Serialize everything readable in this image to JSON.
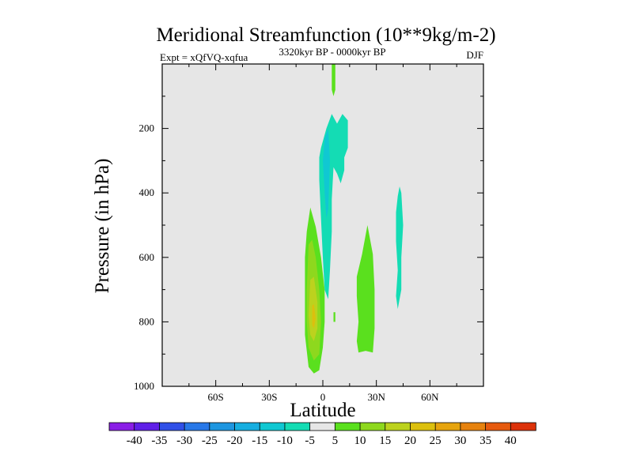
{
  "chart_data": {
    "type": "contour",
    "title": "Meridional Streamfunction (10**9kg/m-2)",
    "subtitle_left": "Expt = xQfVQ-xqfua",
    "subtitle_center": "3320kyr BP - 0000kyr BP",
    "subtitle_right": "DJF",
    "xlabel": "Latitude",
    "ylabel": "Pressure (in hPa)",
    "xlim": [
      -90,
      90
    ],
    "ylim": [
      1000,
      0
    ],
    "x_ticks": [
      {
        "value": -60,
        "label": "60S"
      },
      {
        "value": -30,
        "label": "30S"
      },
      {
        "value": 0,
        "label": "0"
      },
      {
        "value": 30,
        "label": "30N"
      },
      {
        "value": 60,
        "label": "60N"
      }
    ],
    "y_ticks": [
      {
        "value": 200,
        "label": "200"
      },
      {
        "value": 400,
        "label": "400"
      },
      {
        "value": 600,
        "label": "600"
      },
      {
        "value": 800,
        "label": "800"
      },
      {
        "value": 1000,
        "label": "1000"
      }
    ],
    "colorbar": {
      "levels": [
        -40,
        -35,
        -30,
        -25,
        -20,
        -15,
        -10,
        -5,
        5,
        10,
        15,
        20,
        25,
        30,
        35,
        40
      ],
      "labels": [
        "-40",
        "-35",
        "-30",
        "-25",
        "-20",
        "-15",
        "-10",
        "-5",
        "5",
        "10",
        "15",
        "20",
        "25",
        "30",
        "35",
        "40"
      ],
      "colors": [
        "#8a1ee6",
        "#6020e8",
        "#3050e8",
        "#2878e8",
        "#1e96e0",
        "#16aee0",
        "#10c8d2",
        "#14dcb4",
        "#e6e6e6",
        "#5ae01e",
        "#8ed81e",
        "#bcd21e",
        "#dcc00e",
        "#e6a40e",
        "#e6820e",
        "#e65a0e",
        "#dc320a"
      ]
    },
    "regions": [
      {
        "level": 5,
        "color": "#5ae01e",
        "points": [
          [
            5,
            0
          ],
          [
            7,
            0
          ],
          [
            7,
            80
          ],
          [
            6,
            100
          ],
          [
            5,
            80
          ]
        ]
      },
      {
        "level": -5,
        "color": "#14dcb4",
        "points": [
          [
            -1,
            260
          ],
          [
            2,
            200
          ],
          [
            5,
            155
          ],
          [
            8,
            185
          ],
          [
            11,
            155
          ],
          [
            14,
            175
          ],
          [
            14,
            260
          ],
          [
            12,
            290
          ],
          [
            12,
            330
          ],
          [
            10,
            370
          ],
          [
            8,
            340
          ],
          [
            6,
            320
          ],
          [
            5,
            420
          ],
          [
            5,
            520
          ],
          [
            4,
            640
          ],
          [
            3,
            730
          ],
          [
            1,
            700
          ],
          [
            0,
            600
          ],
          [
            -1,
            480
          ],
          [
            -2,
            360
          ],
          [
            -2,
            290
          ]
        ]
      },
      {
        "level": -10,
        "color": "#10c8d2",
        "points": [
          [
            1,
            230
          ],
          [
            3,
            200
          ],
          [
            4,
            300
          ],
          [
            3,
            450
          ],
          [
            2,
            480
          ],
          [
            1,
            400
          ],
          [
            0,
            300
          ]
        ]
      },
      {
        "level": 5,
        "color": "#5ae01e",
        "points": [
          [
            -9,
            520
          ],
          [
            -7,
            445
          ],
          [
            -4,
            505
          ],
          [
            -1,
            600
          ],
          [
            1,
            700
          ],
          [
            1,
            800
          ],
          [
            0,
            880
          ],
          [
            -2,
            950
          ],
          [
            -5,
            960
          ],
          [
            -8,
            940
          ],
          [
            -10,
            840
          ],
          [
            -10,
            700
          ],
          [
            -10,
            600
          ]
        ]
      },
      {
        "level": 10,
        "color": "#8ed81e",
        "points": [
          [
            -8,
            560
          ],
          [
            -6,
            545
          ],
          [
            -4,
            600
          ],
          [
            -2,
            700
          ],
          [
            -1,
            800
          ],
          [
            -2,
            900
          ],
          [
            -5,
            920
          ],
          [
            -8,
            880
          ],
          [
            -9,
            800
          ],
          [
            -9,
            700
          ]
        ]
      },
      {
        "level": 15,
        "color": "#bcd21e",
        "points": [
          [
            -7,
            670
          ],
          [
            -5,
            660
          ],
          [
            -3,
            740
          ],
          [
            -3,
            820
          ],
          [
            -5,
            860
          ],
          [
            -7,
            840
          ],
          [
            -8,
            780
          ]
        ]
      },
      {
        "level": 20,
        "color": "#dcc00e",
        "points": [
          [
            -6,
            750
          ],
          [
            -5,
            745
          ],
          [
            -4,
            790
          ],
          [
            -5,
            820
          ],
          [
            -6,
            810
          ]
        ]
      },
      {
        "level": 5,
        "color": "#5ae01e",
        "points": [
          [
            6,
            770
          ],
          [
            7,
            770
          ],
          [
            7,
            800
          ],
          [
            6,
            800
          ]
        ]
      },
      {
        "level": 5,
        "color": "#5ae01e",
        "points": [
          [
            19,
            660
          ],
          [
            22,
            590
          ],
          [
            25,
            500
          ],
          [
            28,
            590
          ],
          [
            29,
            700
          ],
          [
            29,
            820
          ],
          [
            28,
            895
          ],
          [
            24,
            890
          ],
          [
            20,
            895
          ],
          [
            19,
            860
          ],
          [
            20,
            800
          ],
          [
            19,
            720
          ]
        ]
      },
      {
        "level": -5,
        "color": "#14dcb4",
        "points": [
          [
            43,
            380
          ],
          [
            44,
            400
          ],
          [
            45,
            500
          ],
          [
            44,
            600
          ],
          [
            44,
            700
          ],
          [
            42,
            760
          ],
          [
            41,
            720
          ],
          [
            42,
            640
          ],
          [
            41,
            550
          ],
          [
            41,
            460
          ],
          [
            42,
            410
          ]
        ]
      }
    ]
  }
}
